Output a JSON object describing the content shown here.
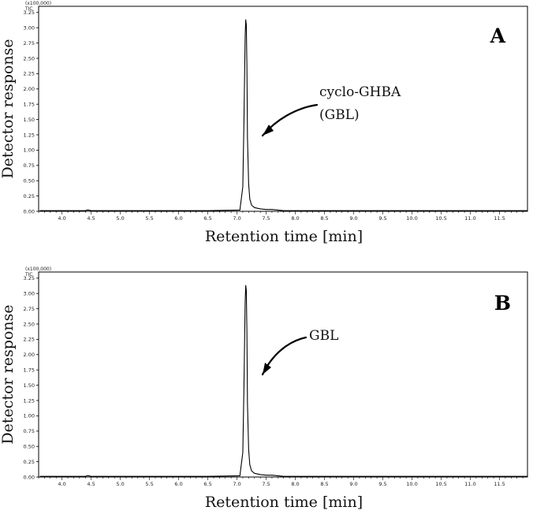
{
  "chart_data": [
    {
      "type": "line",
      "panel_label": "A",
      "scale_note": "(x100,000)",
      "series_tag": "TIC",
      "ylabel": "Detector response",
      "xlabel": "Retention time  [min]",
      "xlim": [
        3.6,
        11.98
      ],
      "ylim": [
        0,
        3.35
      ],
      "xticks": [
        "4.0",
        "4.5",
        "5.0",
        "5.5",
        "6.0",
        "6.5",
        "7.0",
        "7.5",
        "8.0",
        "8.5",
        "9.0",
        "9.5",
        "10.0",
        "10.5",
        "11.0",
        "11.5"
      ],
      "yticks": [
        "0.00",
        "0.25",
        "0.50",
        "0.75",
        "1.00",
        "1.25",
        "1.50",
        "1.75",
        "2.00",
        "2.25",
        "2.50",
        "2.75",
        "3.00",
        "3.25"
      ],
      "annotation_lines": [
        "cyclo-GHBA",
        "(GBL)"
      ],
      "series": [
        {
          "x": [
            3.62,
            4.4,
            4.43,
            4.46,
            4.5,
            5.5,
            6.5,
            7.05,
            7.1,
            7.12,
            7.14,
            7.15,
            7.16,
            7.17,
            7.18,
            7.2,
            7.22,
            7.25,
            7.3,
            7.4,
            7.5,
            7.6,
            7.7,
            7.8,
            8.5,
            10.0,
            11.98
          ],
          "y": [
            0.01,
            0.01,
            0.02,
            0.02,
            0.01,
            0.01,
            0.01,
            0.02,
            0.4,
            1.5,
            2.85,
            3.13,
            3.05,
            2.4,
            1.2,
            0.45,
            0.2,
            0.1,
            0.06,
            0.04,
            0.03,
            0.03,
            0.02,
            0.01,
            0.01,
            0.01,
            0.01
          ]
        }
      ]
    },
    {
      "type": "line",
      "panel_label": "B",
      "scale_note": "(x100,000)",
      "series_tag": "TIC",
      "ylabel": "Detector response",
      "xlabel": "Retention time  [min]",
      "xlim": [
        3.6,
        11.98
      ],
      "ylim": [
        0,
        3.35
      ],
      "xticks": [
        "4.0",
        "4.5",
        "5.0",
        "5.5",
        "6.0",
        "6.5",
        "7.0",
        "7.5",
        "8.0",
        "8.5",
        "9.0",
        "9.5",
        "10.0",
        "10.5",
        "11.0",
        "11.5"
      ],
      "yticks": [
        "0.00",
        "0.25",
        "0.50",
        "0.75",
        "1.00",
        "1.25",
        "1.50",
        "1.75",
        "2.00",
        "2.25",
        "2.50",
        "2.75",
        "3.00",
        "3.25"
      ],
      "annotation_lines": [
        "GBL"
      ],
      "series": [
        {
          "x": [
            3.62,
            4.4,
            4.43,
            4.46,
            4.5,
            5.5,
            6.5,
            7.05,
            7.1,
            7.12,
            7.14,
            7.15,
            7.16,
            7.17,
            7.18,
            7.2,
            7.22,
            7.25,
            7.3,
            7.4,
            7.5,
            7.6,
            7.7,
            7.8,
            8.5,
            10.0,
            11.98
          ],
          "y": [
            0.01,
            0.01,
            0.02,
            0.02,
            0.01,
            0.01,
            0.01,
            0.02,
            0.4,
            1.5,
            2.85,
            3.13,
            3.05,
            2.4,
            1.2,
            0.45,
            0.2,
            0.1,
            0.06,
            0.04,
            0.03,
            0.03,
            0.02,
            0.01,
            0.01,
            0.01,
            0.01
          ]
        }
      ]
    }
  ]
}
